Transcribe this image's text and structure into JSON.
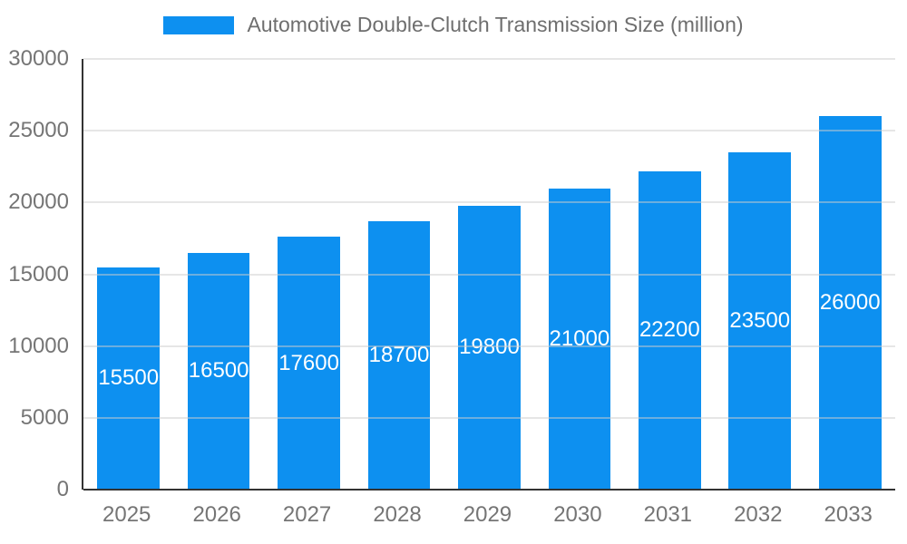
{
  "chart_data": {
    "type": "bar",
    "title": "Automotive Double-Clutch Transmission Size (million)",
    "legend_position": "top",
    "grid": true,
    "categories": [
      "2025",
      "2026",
      "2027",
      "2028",
      "2029",
      "2030",
      "2031",
      "2032",
      "2033"
    ],
    "series": [
      {
        "name": "Automotive Double-Clutch Transmission Size (million)",
        "values": [
          15500,
          16500,
          17600,
          18700,
          19800,
          21000,
          22200,
          23500,
          26000
        ]
      }
    ],
    "xlabel": "",
    "ylabel": "",
    "ylim": [
      0,
      30000
    ],
    "y_ticks": [
      0,
      5000,
      10000,
      15000,
      20000,
      25000,
      30000
    ],
    "colors": {
      "bar": "#0d90f0",
      "bar_value_label": "#ffffff",
      "gridline": "#cccccc",
      "axis_line": "#333333",
      "tick_label": "#757575",
      "legend_text": "#6e6e6e",
      "background": "#ffffff"
    }
  }
}
